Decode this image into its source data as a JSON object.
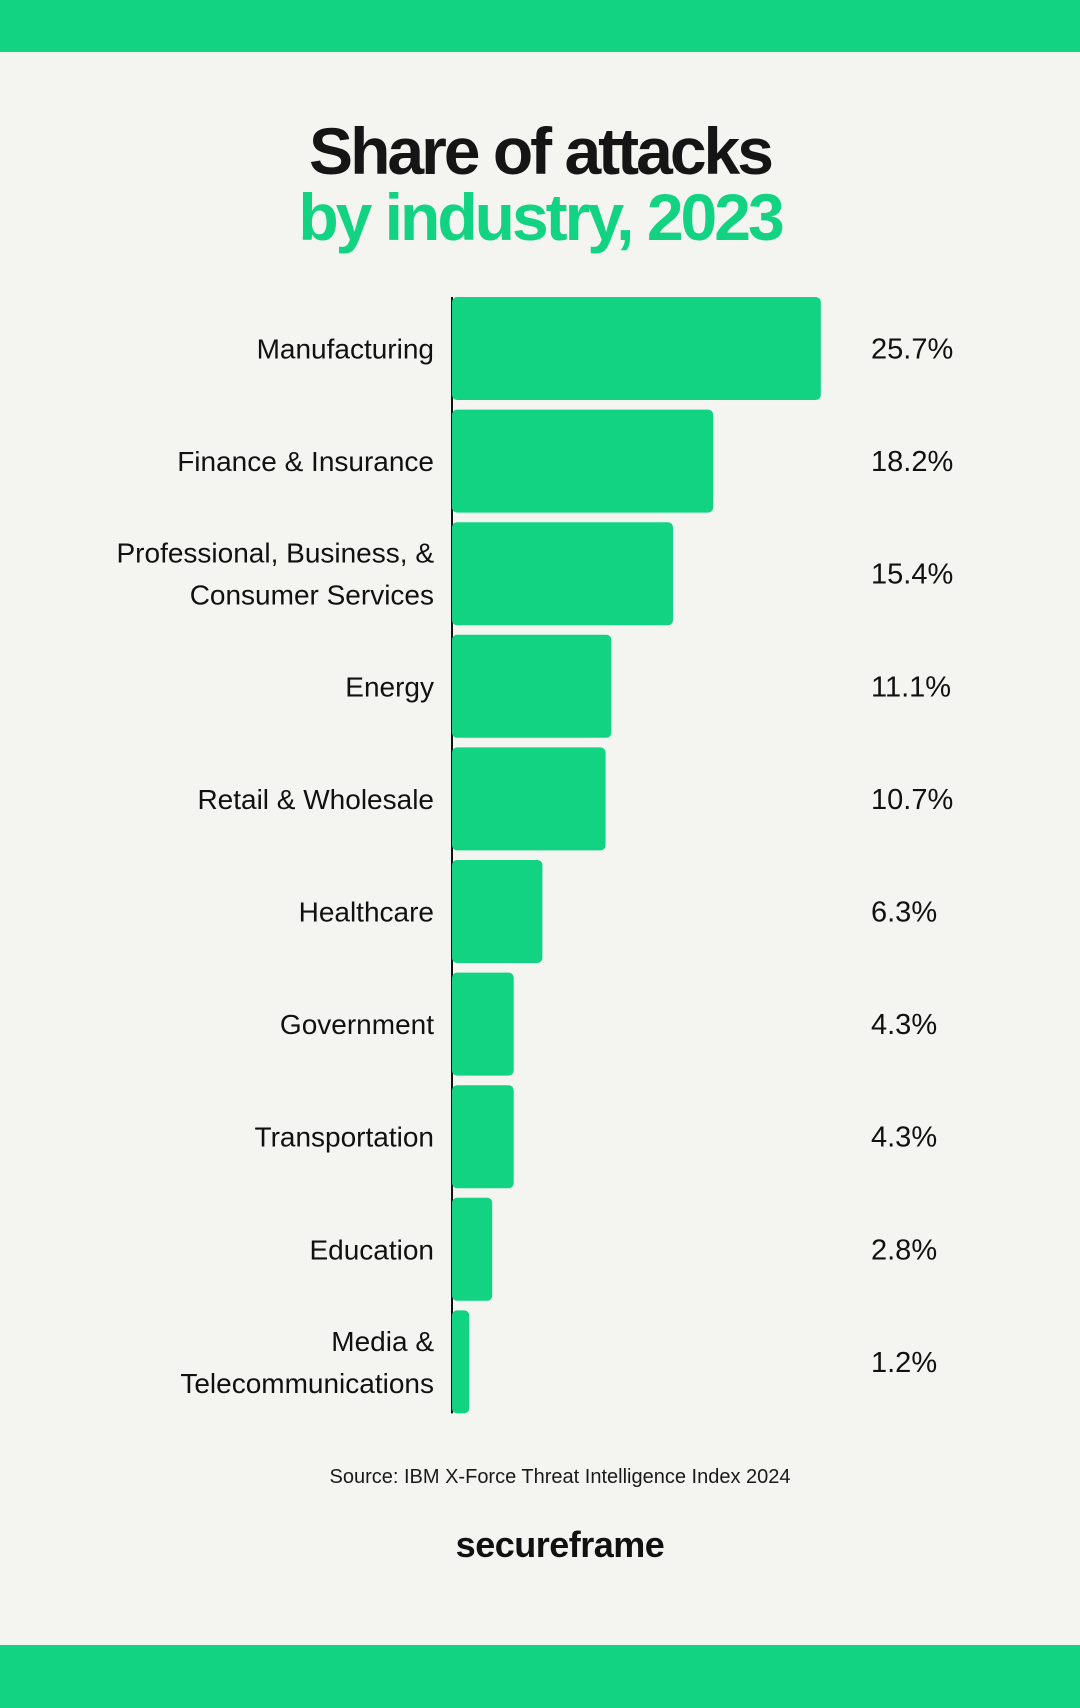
{
  "title": {
    "line1": "Share of attacks",
    "line2": "by industry, 2023"
  },
  "colors": {
    "accent": "#12d382",
    "background": "#f4f4f0",
    "text": "#111111"
  },
  "chart_data": {
    "type": "bar",
    "orientation": "horizontal",
    "title": "Share of attacks by industry, 2023",
    "categories": [
      [
        "Manufacturing"
      ],
      [
        "Finance & Insurance"
      ],
      [
        "Professional, Business, &",
        "Consumer Services"
      ],
      [
        "Energy"
      ],
      [
        "Retail & Wholesale"
      ],
      [
        "Healthcare"
      ],
      [
        "Government"
      ],
      [
        "Transportation"
      ],
      [
        "Education"
      ],
      [
        "Media &",
        "Telecommunications"
      ]
    ],
    "values": [
      25.7,
      18.2,
      15.4,
      11.1,
      10.7,
      6.3,
      4.3,
      4.3,
      2.8,
      1.2
    ],
    "value_labels": [
      "25.7%",
      "18.2%",
      "15.4%",
      "11.1%",
      "10.7%",
      "6.3%",
      "4.3%",
      "4.3%",
      "2.8%",
      "1.2%"
    ],
    "unit": "%",
    "grid": false,
    "legend": "none"
  },
  "source": "Source: IBM X-Force Threat Intelligence Index 2024",
  "brand": "secureframe"
}
